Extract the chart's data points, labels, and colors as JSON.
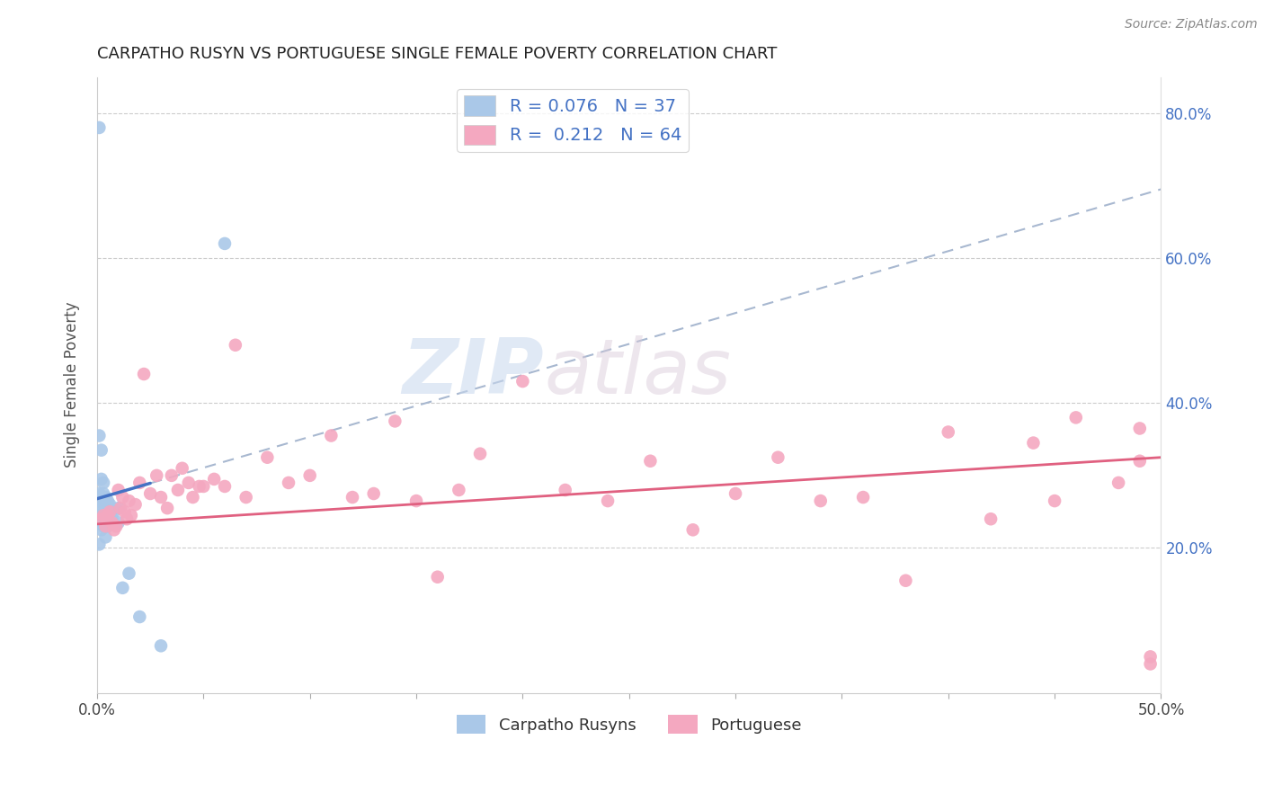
{
  "title": "CARPATHO RUSYN VS PORTUGUESE SINGLE FEMALE POVERTY CORRELATION CHART",
  "source": "Source: ZipAtlas.com",
  "ylabel": "Single Female Poverty",
  "xmin": 0.0,
  "xmax": 0.5,
  "ymin": 0.0,
  "ymax": 0.85,
  "xtick_vals": [
    0.0,
    0.05,
    0.1,
    0.15,
    0.2,
    0.25,
    0.3,
    0.35,
    0.4,
    0.45,
    0.5
  ],
  "xtick_labels": [
    "0.0%",
    "",
    "",
    "",
    "",
    "",
    "",
    "",
    "",
    "",
    "50.0%"
  ],
  "ytick_vals": [
    0.2,
    0.4,
    0.6,
    0.8
  ],
  "ytick_labels": [
    "20.0%",
    "40.0%",
    "60.0%",
    "80.0%"
  ],
  "color_blue": "#aac8e8",
  "color_pink": "#f4a8c0",
  "color_blue_line": "#4472c4",
  "color_pink_line": "#e06080",
  "color_dashed": "#a8b8d0",
  "watermark_zip": "ZIP",
  "watermark_atlas": "atlas",
  "carpatho_x": [
    0.001,
    0.001,
    0.001,
    0.001,
    0.001,
    0.002,
    0.002,
    0.002,
    0.002,
    0.002,
    0.003,
    0.003,
    0.003,
    0.003,
    0.003,
    0.004,
    0.004,
    0.004,
    0.004,
    0.004,
    0.005,
    0.005,
    0.005,
    0.005,
    0.006,
    0.006,
    0.006,
    0.007,
    0.007,
    0.008,
    0.01,
    0.01,
    0.012,
    0.015,
    0.02,
    0.03,
    0.06
  ],
  "carpatho_y": [
    0.78,
    0.355,
    0.275,
    0.245,
    0.205,
    0.335,
    0.295,
    0.27,
    0.255,
    0.225,
    0.29,
    0.275,
    0.26,
    0.245,
    0.23,
    0.27,
    0.265,
    0.255,
    0.24,
    0.215,
    0.265,
    0.255,
    0.245,
    0.23,
    0.26,
    0.25,
    0.235,
    0.255,
    0.24,
    0.25,
    0.255,
    0.235,
    0.145,
    0.165,
    0.105,
    0.065,
    0.62
  ],
  "portuguese_x": [
    0.002,
    0.003,
    0.004,
    0.005,
    0.006,
    0.007,
    0.008,
    0.009,
    0.01,
    0.011,
    0.012,
    0.013,
    0.014,
    0.015,
    0.016,
    0.018,
    0.02,
    0.022,
    0.025,
    0.028,
    0.03,
    0.033,
    0.035,
    0.038,
    0.04,
    0.043,
    0.045,
    0.048,
    0.05,
    0.055,
    0.06,
    0.065,
    0.07,
    0.08,
    0.09,
    0.1,
    0.11,
    0.12,
    0.13,
    0.14,
    0.15,
    0.16,
    0.17,
    0.18,
    0.2,
    0.22,
    0.24,
    0.26,
    0.28,
    0.3,
    0.32,
    0.34,
    0.36,
    0.38,
    0.4,
    0.42,
    0.44,
    0.45,
    0.46,
    0.48,
    0.49,
    0.495,
    0.49,
    0.495
  ],
  "portuguese_y": [
    0.24,
    0.245,
    0.23,
    0.245,
    0.25,
    0.235,
    0.225,
    0.23,
    0.28,
    0.255,
    0.27,
    0.25,
    0.24,
    0.265,
    0.245,
    0.26,
    0.29,
    0.44,
    0.275,
    0.3,
    0.27,
    0.255,
    0.3,
    0.28,
    0.31,
    0.29,
    0.27,
    0.285,
    0.285,
    0.295,
    0.285,
    0.48,
    0.27,
    0.325,
    0.29,
    0.3,
    0.355,
    0.27,
    0.275,
    0.375,
    0.265,
    0.16,
    0.28,
    0.33,
    0.43,
    0.28,
    0.265,
    0.32,
    0.225,
    0.275,
    0.325,
    0.265,
    0.27,
    0.155,
    0.36,
    0.24,
    0.345,
    0.265,
    0.38,
    0.29,
    0.365,
    0.04,
    0.32,
    0.05
  ]
}
